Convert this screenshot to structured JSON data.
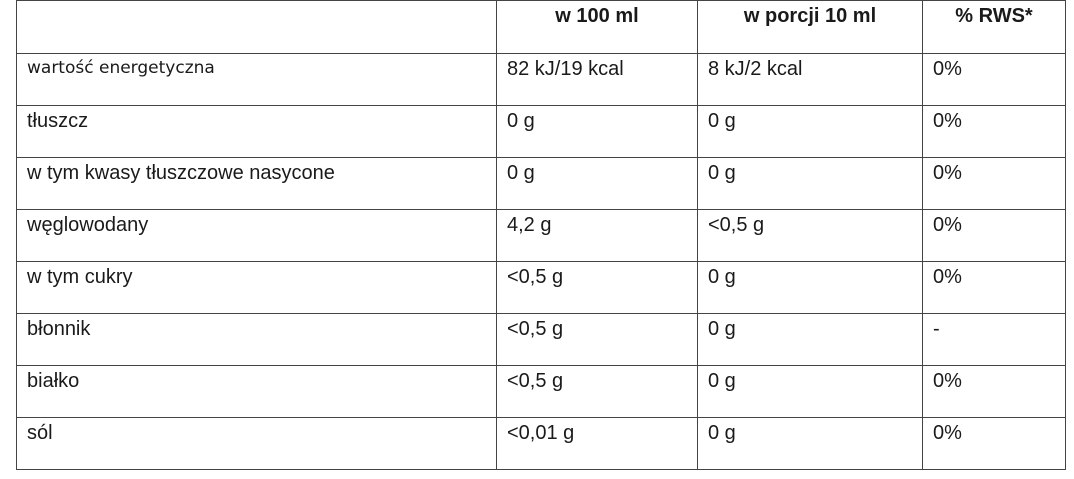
{
  "table": {
    "headers": [
      "",
      "w 100 ml",
      "w porcji 10 ml",
      "% RWS*"
    ],
    "rows": [
      [
        "wartość energetyczna",
        "82 kJ/19 kcal",
        "8 kJ/2 kcal",
        "0%"
      ],
      [
        "tłuszcz",
        "0 g",
        "0 g",
        "0%"
      ],
      [
        "w tym kwasy tłuszczowe nasycone",
        "0 g",
        "0 g",
        "0%"
      ],
      [
        "węglowodany",
        "4,2 g",
        "<0,5 g",
        "0%"
      ],
      [
        "w tym cukry",
        "<0,5 g",
        "0 g",
        "0%"
      ],
      [
        "błonnik",
        "<0,5 g",
        "0 g",
        "-"
      ],
      [
        "białko",
        "<0,5 g",
        "0 g",
        "0%"
      ],
      [
        "sól",
        "<0,01 g",
        "0 g",
        "0%"
      ]
    ]
  }
}
